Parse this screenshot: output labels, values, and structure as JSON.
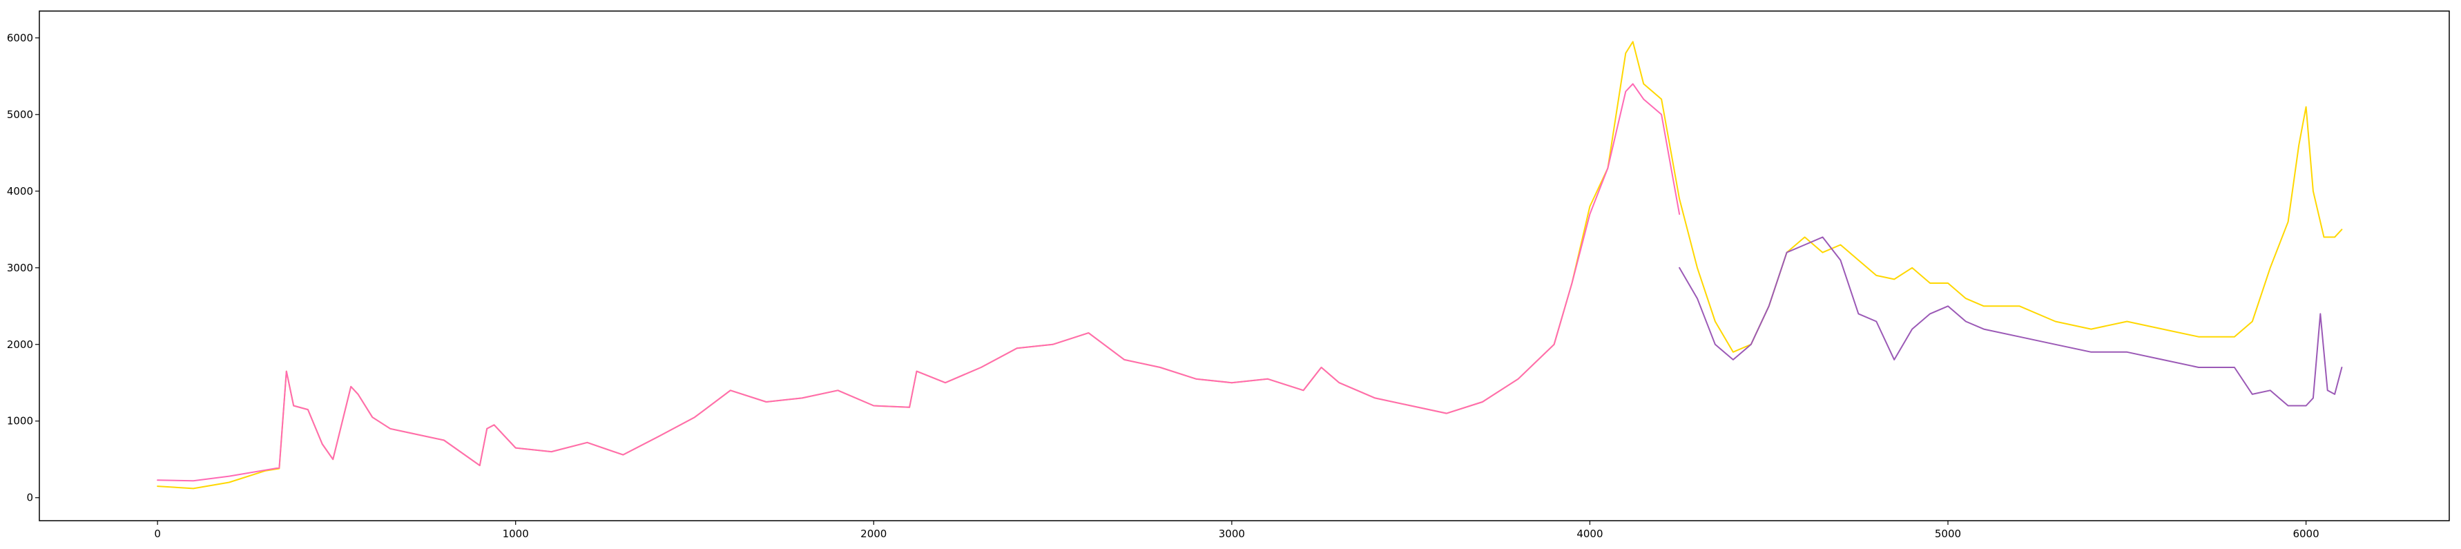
{
  "chart_data": {
    "type": "line",
    "title": "",
    "xlabel": "",
    "ylabel": "",
    "xlim": [
      -330,
      6400
    ],
    "ylim": [
      -300,
      6350
    ],
    "x_ticks": [
      0,
      1000,
      2000,
      3000,
      4000,
      5000,
      6000
    ],
    "y_ticks": [
      0,
      1000,
      2000,
      3000,
      4000,
      5000,
      6000
    ],
    "x_tick_labels": [
      "0",
      "1000",
      "2000",
      "3000",
      "4000",
      "5000",
      "6000"
    ],
    "y_tick_labels": [
      "0",
      "1000",
      "2000",
      "3000",
      "4000",
      "5000",
      "6000"
    ],
    "grid": false,
    "legend": false,
    "series": [
      {
        "color": "#FFD700",
        "x": [
          0,
          100,
          200,
          300,
          340,
          360,
          380,
          420,
          460,
          490,
          540,
          560,
          600,
          650,
          700,
          800,
          900,
          920,
          940,
          1000,
          1100,
          1200,
          1300,
          1400,
          1500,
          1600,
          1700,
          1800,
          1900,
          2000,
          2100,
          2120,
          2200,
          2300,
          2400,
          2500,
          2600,
          2700,
          2800,
          2900,
          3000,
          3100,
          3200,
          3250,
          3300,
          3400,
          3500,
          3600,
          3700,
          3800,
          3900,
          3950,
          4000,
          4050,
          4100,
          4120,
          4150,
          4200,
          4250,
          4300,
          4350,
          4400,
          4450,
          4500,
          4550,
          4600,
          4650,
          4700,
          4750,
          4800,
          4850,
          4900,
          4950,
          5000,
          5050,
          5100,
          5200,
          5300,
          5400,
          5500,
          5600,
          5700,
          5800,
          5850,
          5900,
          5950,
          5980,
          6000,
          6020,
          6050,
          6080,
          6100
        ],
        "y": [
          150,
          120,
          200,
          350,
          380,
          1650,
          1200,
          1150,
          700,
          500,
          1450,
          1350,
          1050,
          900,
          850,
          750,
          420,
          900,
          950,
          650,
          600,
          720,
          560,
          800,
          1050,
          1400,
          1250,
          1300,
          1400,
          1200,
          1180,
          1650,
          1500,
          1700,
          1950,
          2000,
          2150,
          1800,
          1700,
          1550,
          1500,
          1550,
          1400,
          1700,
          1500,
          1300,
          1200,
          1100,
          1250,
          1550,
          2000,
          2800,
          3800,
          4300,
          5800,
          5950,
          5400,
          5200,
          3900,
          3000,
          2300,
          1900,
          2000,
          2500,
          3200,
          3400,
          3200,
          3300,
          3100,
          2900,
          2850,
          3000,
          2800,
          2800,
          2600,
          2500,
          2500,
          2300,
          2200,
          2300,
          2200,
          2100,
          2100,
          2300,
          3000,
          3600,
          4600,
          5100,
          4000,
          3400,
          3400,
          3500
        ]
      },
      {
        "color": "#9B59B6",
        "x": [
          4250,
          4300,
          4350,
          4400,
          4450,
          4500,
          4550,
          4600,
          4650,
          4700,
          4750,
          4800,
          4850,
          4900,
          4950,
          5000,
          5050,
          5100,
          5200,
          5300,
          5400,
          5500,
          5600,
          5700,
          5800,
          5850,
          5900,
          5950,
          6000,
          6020,
          6040,
          6060,
          6080,
          6100
        ],
        "y": [
          3000,
          2600,
          2000,
          1800,
          2000,
          2500,
          3200,
          3300,
          3400,
          3100,
          2400,
          2300,
          1800,
          2200,
          2400,
          2500,
          2300,
          2200,
          2100,
          2000,
          1900,
          1900,
          1800,
          1700,
          1700,
          1350,
          1400,
          1200,
          1200,
          1300,
          2400,
          1400,
          1350,
          1700
        ]
      },
      {
        "color": "#FF69B4",
        "x": [
          0,
          100,
          200,
          300,
          340,
          360,
          380,
          420,
          460,
          490,
          540,
          560,
          600,
          650,
          700,
          800,
          900,
          920,
          940,
          1000,
          1100,
          1200,
          1300,
          1400,
          1500,
          1600,
          1700,
          1800,
          1900,
          2000,
          2100,
          2120,
          2200,
          2300,
          2400,
          2500,
          2600,
          2700,
          2800,
          2900,
          3000,
          3100,
          3200,
          3250,
          3300,
          3400,
          3500,
          3600,
          3700,
          3800,
          3900,
          3950,
          4000,
          4050,
          4100,
          4120,
          4150,
          4200,
          4250
        ],
        "y": [
          230,
          220,
          280,
          360,
          390,
          1650,
          1200,
          1150,
          700,
          500,
          1450,
          1350,
          1050,
          900,
          850,
          750,
          420,
          900,
          950,
          650,
          600,
          720,
          560,
          800,
          1050,
          1400,
          1250,
          1300,
          1400,
          1200,
          1180,
          1650,
          1500,
          1700,
          1950,
          2000,
          2150,
          1800,
          1700,
          1550,
          1500,
          1550,
          1400,
          1700,
          1500,
          1300,
          1200,
          1100,
          1250,
          1550,
          2000,
          2800,
          3700,
          4300,
          5300,
          5400,
          5200,
          5000,
          3700
        ]
      }
    ]
  }
}
